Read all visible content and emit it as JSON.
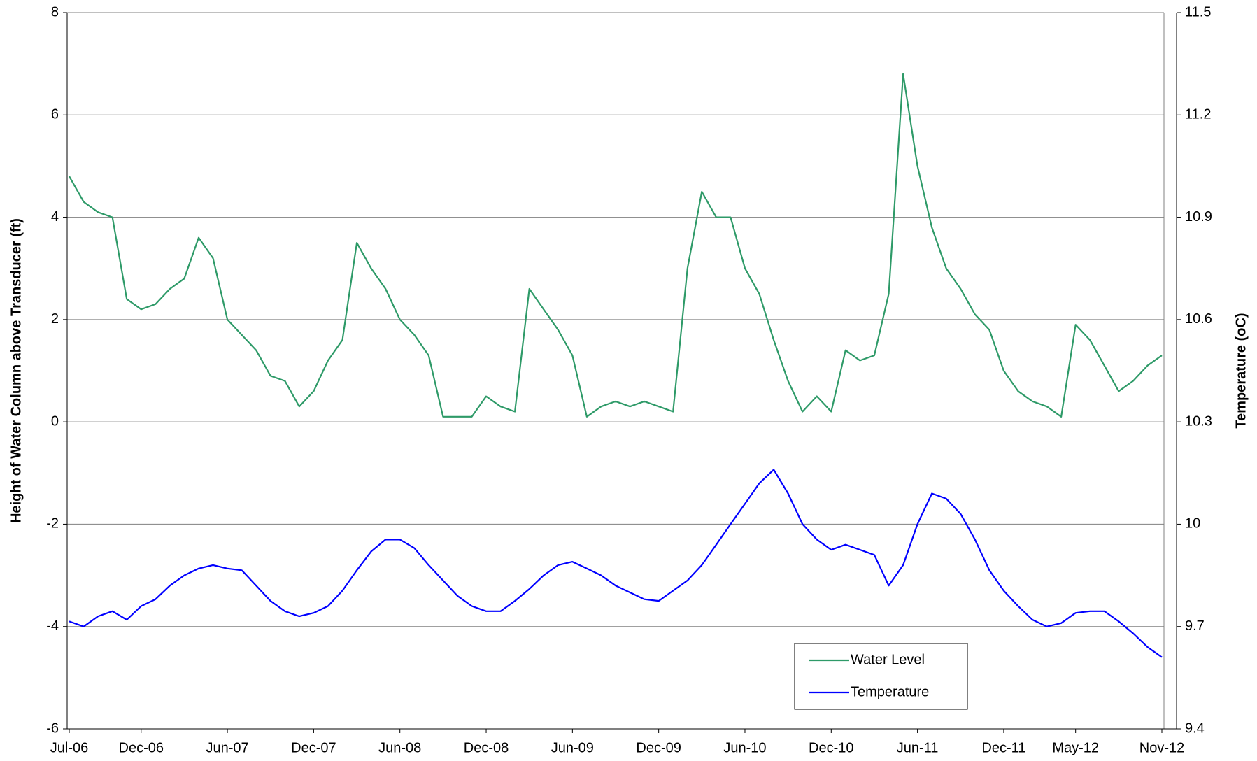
{
  "chart_data": {
    "type": "line",
    "y_label": "Height of Water Column above Transducer (ft)",
    "y2_label": "Temperature (oC)",
    "x": [
      "Jul-06",
      "Aug-06",
      "Sep-06",
      "Oct-06",
      "Nov-06",
      "Dec-06",
      "Jan-07",
      "Feb-07",
      "Mar-07",
      "Apr-07",
      "May-07",
      "Jun-07",
      "Jul-07",
      "Aug-07",
      "Sep-07",
      "Oct-07",
      "Nov-07",
      "Dec-07",
      "Jan-08",
      "Feb-08",
      "Mar-08",
      "Apr-08",
      "May-08",
      "Jun-08",
      "Jul-08",
      "Aug-08",
      "Sep-08",
      "Oct-08",
      "Nov-08",
      "Dec-08",
      "Jan-09",
      "Feb-09",
      "Mar-09",
      "Apr-09",
      "May-09",
      "Jun-09",
      "Jul-09",
      "Aug-09",
      "Sep-09",
      "Oct-09",
      "Nov-09",
      "Dec-09",
      "Jan-10",
      "Feb-10",
      "Mar-10",
      "Apr-10",
      "May-10",
      "Jun-10",
      "Jul-10",
      "Aug-10",
      "Sep-10",
      "Oct-10",
      "Nov-10",
      "Dec-10",
      "Jan-11",
      "Feb-11",
      "Mar-11",
      "Apr-11",
      "May-11",
      "Jun-11",
      "Jul-11",
      "Aug-11",
      "Sep-11",
      "Oct-11",
      "Nov-11",
      "Dec-11",
      "Jan-12",
      "Feb-12",
      "Mar-12",
      "Apr-12",
      "May-12",
      "Jun-12",
      "Jul-12",
      "Aug-12",
      "Sep-12",
      "Oct-12",
      "Nov-12"
    ],
    "xticks": [
      "Jul-06",
      "Dec-06",
      "Jun-07",
      "Dec-07",
      "Jun-08",
      "Dec-08",
      "Jun-09",
      "Dec-09",
      "Jun-10",
      "Dec-10",
      "Jun-11",
      "Dec-11",
      "May-12",
      "Nov-12"
    ],
    "series": [
      {
        "name": "Water Level",
        "color": "#2e9a68",
        "values": [
          4.8,
          4.3,
          4.1,
          4.0,
          2.4,
          2.2,
          2.3,
          2.6,
          2.8,
          3.6,
          3.2,
          2.0,
          1.7,
          1.4,
          0.9,
          0.8,
          0.3,
          0.6,
          1.2,
          1.6,
          3.5,
          3.0,
          2.6,
          2.0,
          1.7,
          1.3,
          0.1,
          0.1,
          0.1,
          0.5,
          0.3,
          0.2,
          2.6,
          2.2,
          1.8,
          1.3,
          0.1,
          0.3,
          0.4,
          0.3,
          0.4,
          0.3,
          0.2,
          3.0,
          4.5,
          4.0,
          4.0,
          3.0,
          2.5,
          1.6,
          0.8,
          0.2,
          0.5,
          0.2,
          1.4,
          1.2,
          1.3,
          2.5,
          6.8,
          5.0,
          3.8,
          3.0,
          2.6,
          2.1,
          1.8,
          1.0,
          0.6,
          0.4,
          0.3,
          0.1,
          1.9,
          1.6,
          1.1,
          0.6,
          0.8,
          1.1,
          1.3
        ]
      },
      {
        "name": "Temperature",
        "color": "#0000ff",
        "axis": "y2",
        "values": [
          9.715,
          9.7,
          9.73,
          9.745,
          9.72,
          9.76,
          9.78,
          9.82,
          9.85,
          9.87,
          9.88,
          9.87,
          9.865,
          9.82,
          9.775,
          9.745,
          9.73,
          9.74,
          9.76,
          9.805,
          9.865,
          9.92,
          9.955,
          9.955,
          9.93,
          9.88,
          9.835,
          9.79,
          9.76,
          9.745,
          9.745,
          9.775,
          9.81,
          9.85,
          9.88,
          9.89,
          9.87,
          9.85,
          9.82,
          9.8,
          9.78,
          9.775,
          9.805,
          9.835,
          9.88,
          9.94,
          10.0,
          10.06,
          10.12,
          10.16,
          10.09,
          10.0,
          9.955,
          9.925,
          9.94,
          9.925,
          9.91,
          9.82,
          9.88,
          10.0,
          10.09,
          10.075,
          10.03,
          9.955,
          9.865,
          9.805,
          9.76,
          9.72,
          9.7,
          9.71,
          9.74,
          9.745,
          9.745,
          9.715,
          9.68,
          9.64,
          9.61
        ]
      }
    ],
    "ylim": [
      -6,
      8
    ],
    "yticks": [
      -6,
      -4,
      -2,
      0,
      2,
      4,
      6,
      8
    ],
    "y2lim": [
      9.4,
      11.5
    ],
    "y2ticks": [
      9.4,
      9.7,
      10,
      10.3,
      10.6,
      10.9,
      11.2,
      11.5
    ],
    "grid": true,
    "legend": "lower-right"
  }
}
